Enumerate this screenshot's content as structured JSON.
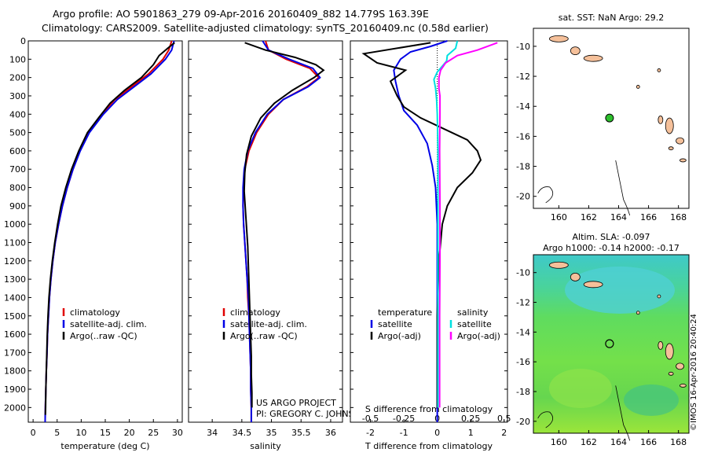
{
  "header": {
    "line1": "Argo profile: AO 5901863_279 09-Apr-2016 20160409_882 14.779S 163.39E",
    "line2": "Climatology: CARS2009. Satellite-adjusted climatology: synTS_20160409.nc (0.58d earlier)"
  },
  "footer_stamp": "©IMOS 16-Apr-2016 20:40:24",
  "colors": {
    "climatology": "#e00000",
    "satellite": "#0000e6",
    "argo": "#000000",
    "sat_salinity": "#00e0e0",
    "argo_salinity": "#ff00ff",
    "land": "#f5c09a",
    "ocean": "#54d0d0",
    "float_marker": "#2dbf2d"
  },
  "chart_data": [
    {
      "type": "line",
      "xlabel": "temperature (deg C)",
      "ylim": [
        2080,
        0
      ],
      "xlim": [
        -1,
        31
      ],
      "xticks": [
        0,
        5,
        10,
        15,
        20,
        25,
        30
      ],
      "yticks": [
        0,
        100,
        200,
        300,
        400,
        500,
        600,
        700,
        800,
        900,
        1000,
        1100,
        1200,
        1300,
        1400,
        1500,
        1600,
        1700,
        1800,
        1900,
        2000
      ],
      "legend": [
        "climatology",
        "satellite-adj. clim.",
        "Argo(..raw -QC)"
      ],
      "series": [
        {
          "name": "climatology",
          "color": "#e00000",
          "points": [
            [
              28.8,
              0
            ],
            [
              28.2,
              50
            ],
            [
              27,
              100
            ],
            [
              24,
              180
            ],
            [
              20.5,
              250
            ],
            [
              17,
              320
            ],
            [
              14.3,
              400
            ],
            [
              11.5,
              500
            ],
            [
              9.7,
              600
            ],
            [
              8.3,
              700
            ],
            [
              7.1,
              800
            ],
            [
              6.1,
              900
            ],
            [
              5.3,
              1000
            ],
            [
              4.6,
              1100
            ],
            [
              4.1,
              1200
            ],
            [
              3.7,
              1300
            ],
            [
              3.4,
              1400
            ],
            [
              3.2,
              1500
            ],
            [
              3,
              1600
            ],
            [
              2.9,
              1700
            ],
            [
              2.75,
              1800
            ],
            [
              2.65,
              1900
            ],
            [
              2.55,
              2000
            ],
            [
              2.5,
              2080
            ]
          ]
        },
        {
          "name": "satellite-adj. clim.",
          "color": "#0000e6",
          "points": [
            [
              29.3,
              0
            ],
            [
              28.8,
              50
            ],
            [
              27.5,
              100
            ],
            [
              24.5,
              180
            ],
            [
              21,
              250
            ],
            [
              17.5,
              320
            ],
            [
              14.6,
              400
            ],
            [
              11.7,
              500
            ],
            [
              9.8,
              600
            ],
            [
              8.3,
              700
            ],
            [
              7.1,
              800
            ],
            [
              6.1,
              900
            ],
            [
              5.3,
              1000
            ],
            [
              4.6,
              1100
            ],
            [
              4.1,
              1200
            ],
            [
              3.7,
              1300
            ],
            [
              3.4,
              1400
            ],
            [
              3.2,
              1500
            ],
            [
              3,
              1600
            ],
            [
              2.9,
              1700
            ],
            [
              2.75,
              1800
            ],
            [
              2.65,
              1900
            ],
            [
              2.55,
              2000
            ],
            [
              2.5,
              2080
            ]
          ]
        },
        {
          "name": "Argo(..raw -QC)",
          "color": "#000000",
          "points": [
            [
              29.4,
              10
            ],
            [
              28,
              40
            ],
            [
              26.2,
              80
            ],
            [
              25,
              130
            ],
            [
              22.5,
              200
            ],
            [
              19,
              270
            ],
            [
              16,
              340
            ],
            [
              13.6,
              420
            ],
            [
              11.3,
              500
            ],
            [
              9.5,
              600
            ],
            [
              8,
              700
            ],
            [
              6.8,
              800
            ],
            [
              5.8,
              900
            ],
            [
              5.1,
              1000
            ],
            [
              4.5,
              1100
            ],
            [
              4,
              1200
            ],
            [
              3.6,
              1300
            ],
            [
              3.3,
              1400
            ],
            [
              3.1,
              1500
            ],
            [
              2.95,
              1600
            ],
            [
              2.85,
              1700
            ],
            [
              2.75,
              1800
            ],
            [
              2.65,
              1900
            ],
            [
              2.6,
              2000
            ],
            [
              2.55,
              2040
            ]
          ]
        }
      ]
    },
    {
      "type": "line",
      "xlabel": "salinity",
      "ylim": [
        2080,
        0
      ],
      "xlim": [
        33.6,
        36.2
      ],
      "xticks": [
        34,
        34.5,
        35,
        35.5,
        36
      ],
      "xticklabels": [
        "34",
        "34.5",
        "35",
        "35.5",
        "36"
      ],
      "legend": [
        "climatology",
        "satellite-adj. clim.",
        "Argo(..raw -QC)"
      ],
      "annotation": [
        "US ARGO PROJECT",
        "PI: GREGORY C. JOHNSON"
      ],
      "series": [
        {
          "name": "climatology",
          "color": "#e00000",
          "points": [
            [
              34.9,
              0
            ],
            [
              34.95,
              50
            ],
            [
              35.25,
              100
            ],
            [
              35.65,
              150
            ],
            [
              35.8,
              200
            ],
            [
              35.6,
              250
            ],
            [
              35.2,
              320
            ],
            [
              34.95,
              400
            ],
            [
              34.75,
              500
            ],
            [
              34.62,
              600
            ],
            [
              34.55,
              700
            ],
            [
              34.53,
              800
            ],
            [
              34.52,
              900
            ],
            [
              34.53,
              1000
            ],
            [
              34.55,
              1100
            ],
            [
              34.57,
              1200
            ],
            [
              34.59,
              1300
            ],
            [
              34.6,
              1400
            ],
            [
              34.62,
              1500
            ],
            [
              34.63,
              1600
            ],
            [
              34.64,
              1700
            ],
            [
              34.65,
              1800
            ],
            [
              34.65,
              1900
            ],
            [
              34.66,
              2000
            ],
            [
              34.66,
              2080
            ]
          ]
        },
        {
          "name": "satellite-adj. clim.",
          "color": "#0000e6",
          "points": [
            [
              34.85,
              0
            ],
            [
              34.95,
              50
            ],
            [
              35.3,
              100
            ],
            [
              35.7,
              150
            ],
            [
              35.82,
              200
            ],
            [
              35.62,
              250
            ],
            [
              35.2,
              320
            ],
            [
              34.93,
              400
            ],
            [
              34.73,
              500
            ],
            [
              34.6,
              600
            ],
            [
              34.54,
              700
            ],
            [
              34.52,
              800
            ],
            [
              34.52,
              900
            ],
            [
              34.53,
              1000
            ],
            [
              34.55,
              1100
            ],
            [
              34.57,
              1200
            ],
            [
              34.59,
              1300
            ],
            [
              34.61,
              1400
            ],
            [
              34.62,
              1500
            ],
            [
              34.63,
              1600
            ],
            [
              34.64,
              1700
            ],
            [
              34.65,
              1800
            ],
            [
              34.65,
              1900
            ],
            [
              34.66,
              2000
            ],
            [
              34.66,
              2080
            ]
          ]
        },
        {
          "name": "Argo(..raw -QC)",
          "color": "#000000",
          "points": [
            [
              34.55,
              10
            ],
            [
              34.9,
              50
            ],
            [
              35.4,
              90
            ],
            [
              35.75,
              130
            ],
            [
              35.88,
              160
            ],
            [
              35.72,
              200
            ],
            [
              35.35,
              270
            ],
            [
              35.05,
              340
            ],
            [
              34.82,
              420
            ],
            [
              34.66,
              520
            ],
            [
              34.58,
              620
            ],
            [
              34.55,
              720
            ],
            [
              34.54,
              820
            ],
            [
              34.56,
              920
            ],
            [
              34.58,
              1020
            ],
            [
              34.6,
              1120
            ],
            [
              34.61,
              1220
            ],
            [
              34.62,
              1320
            ],
            [
              34.63,
              1420
            ],
            [
              34.64,
              1520
            ],
            [
              34.65,
              1620
            ],
            [
              34.66,
              1720
            ],
            [
              34.66,
              1820
            ],
            [
              34.67,
              1920
            ],
            [
              34.67,
              2000
            ]
          ]
        }
      ]
    },
    {
      "type": "line",
      "xlabel": "T difference from climatology",
      "secondary_xlabel": "S difference from climatology",
      "ylim": [
        2080,
        0
      ],
      "xlim": [
        -2.6,
        2.1
      ],
      "xticks": [
        -2,
        -1,
        0,
        1,
        2
      ],
      "secondary_xticks": [
        -0.5,
        -0.25,
        0,
        0.25,
        0.5
      ],
      "secondary_xticklabels": [
        "-0.5",
        "-0.25",
        "0",
        "0.25",
        "0.5"
      ],
      "secondary_scale": 0.25,
      "legend_titles": [
        "temperature",
        "salinity"
      ],
      "legend": [
        "satellite",
        "Argo(-adj)",
        "satellite",
        "Argo(-adj)"
      ],
      "series": [
        {
          "name": "satellite",
          "color": "#0000e6",
          "axis": "T",
          "points": [
            [
              0.3,
              0
            ],
            [
              -0.2,
              30
            ],
            [
              -0.8,
              60
            ],
            [
              -1.1,
              100
            ],
            [
              -1.3,
              160
            ],
            [
              -1.25,
              220
            ],
            [
              -1.15,
              300
            ],
            [
              -1.0,
              380
            ],
            [
              -0.6,
              460
            ],
            [
              -0.3,
              560
            ],
            [
              -0.15,
              680
            ],
            [
              -0.05,
              800
            ],
            [
              0,
              1000
            ],
            [
              0,
              1500
            ],
            [
              0,
              2000
            ],
            [
              0,
              2080
            ]
          ]
        },
        {
          "name": "Argo(-adj)",
          "color": "#000000",
          "axis": "T",
          "points": [
            [
              -0.2,
              10
            ],
            [
              -2.2,
              70
            ],
            [
              -1.8,
              120
            ],
            [
              -0.95,
              160
            ],
            [
              -1.4,
              220
            ],
            [
              -1.2,
              300
            ],
            [
              -1.0,
              360
            ],
            [
              -0.5,
              420
            ],
            [
              0.2,
              480
            ],
            [
              0.9,
              540
            ],
            [
              1.2,
              600
            ],
            [
              1.3,
              650
            ],
            [
              1.05,
              720
            ],
            [
              0.6,
              800
            ],
            [
              0.3,
              900
            ],
            [
              0.15,
              1000
            ],
            [
              0.05,
              1200
            ],
            [
              0,
              1500
            ],
            [
              0,
              2000
            ]
          ]
        },
        {
          "name": "satellite",
          "color": "#00e0e0",
          "axis": "S",
          "points": [
            [
              0.6,
              0
            ],
            [
              0.55,
              40
            ],
            [
              0.3,
              80
            ],
            [
              0.28,
              110
            ],
            [
              0,
              170
            ],
            [
              -0.1,
              210
            ],
            [
              -0.05,
              260
            ],
            [
              -0.02,
              320
            ],
            [
              0,
              400
            ],
            [
              0.02,
              600
            ],
            [
              0.02,
              1000
            ],
            [
              0.02,
              1500
            ],
            [
              0.02,
              2000
            ]
          ]
        },
        {
          "name": "Argo(-adj)",
          "color": "#ff00ff",
          "axis": "S",
          "points": [
            [
              1.8,
              10
            ],
            [
              1.2,
              50
            ],
            [
              0.6,
              80
            ],
            [
              0.25,
              120
            ],
            [
              0.1,
              160
            ],
            [
              0.05,
              200
            ],
            [
              0.05,
              260
            ],
            [
              0.08,
              300
            ],
            [
              0.08,
              400
            ],
            [
              0.07,
              600
            ],
            [
              0.08,
              900
            ],
            [
              0.08,
              1200
            ],
            [
              0.07,
              1500
            ],
            [
              0.07,
              1800
            ],
            [
              0.07,
              2000
            ]
          ]
        }
      ]
    },
    {
      "type": "map",
      "title": "sat. SST: NaN Argo: 29.2",
      "xlim": [
        158.3,
        168.7
      ],
      "ylim": [
        -20.8,
        -8.8
      ],
      "xticks": [
        160,
        162,
        164,
        166,
        168
      ],
      "yticks": [
        -10,
        -12,
        -14,
        -16,
        -18,
        -20
      ],
      "float_position": [
        163.39,
        -14.779
      ],
      "float_marker": "filled-green-circle"
    },
    {
      "type": "heatmap",
      "title_line1": "Altim. SLA: -0.097",
      "title_line2": "Argo h1000: -0.14 h2000: -0.17",
      "xlim": [
        158.3,
        168.7
      ],
      "ylim": [
        -20.8,
        -8.8
      ],
      "xticks": [
        160,
        162,
        164,
        166,
        168
      ],
      "yticks": [
        -10,
        -12,
        -14,
        -16,
        -18,
        -20
      ],
      "float_position": [
        163.39,
        -14.779
      ],
      "float_marker": "open-black-circle"
    }
  ]
}
